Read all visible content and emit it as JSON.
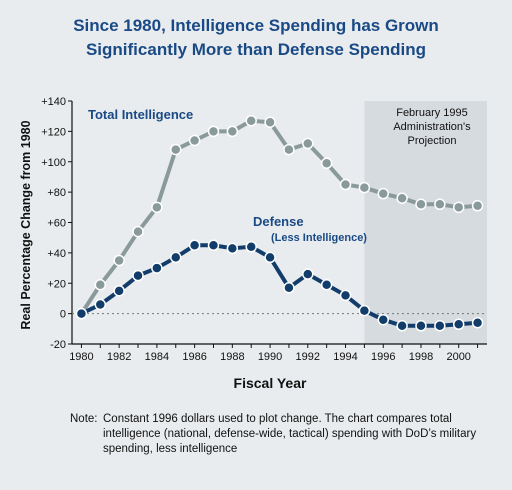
{
  "title_lines": [
    "Since 1980, Intelligence Spending has Grown",
    "Significantly More than Defense Spending"
  ],
  "note": {
    "label": "Note:",
    "text": "Constant 1996 dollars used to plot change. The chart compares total intelligence (national, defense-wide, tactical) spending with DoD’s military spending, less intelligence"
  },
  "colors": {
    "title": "#1a4a86",
    "total_intelligence": "#8a9a9a",
    "defense": "#123d6b",
    "projection_shade": "#d6dbe0",
    "background": "#e9ecee"
  },
  "chart_data": {
    "type": "line",
    "xlabel": "Fiscal Year",
    "ylabel": "Real Percentage Change from 1980",
    "xlim": [
      1979.5,
      2001.5
    ],
    "ylim": [
      -20,
      140
    ],
    "x_ticks": [
      1980,
      1982,
      1984,
      1986,
      1988,
      1990,
      1992,
      1994,
      1996,
      1998,
      2000
    ],
    "y_ticks": [
      -20,
      0,
      20,
      40,
      60,
      80,
      100,
      120,
      140
    ],
    "y_tick_labels": [
      "-20",
      "0",
      "+20",
      "+40",
      "+60",
      "+80",
      "+100",
      "+120",
      "+140"
    ],
    "x": [
      1980,
      1981,
      1982,
      1983,
      1984,
      1985,
      1986,
      1987,
      1988,
      1989,
      1990,
      1991,
      1992,
      1993,
      1994,
      1995,
      1996,
      1997,
      1998,
      1999,
      2000,
      2001
    ],
    "series": [
      {
        "name": "Total Intelligence",
        "values": [
          0,
          19,
          35,
          54,
          70,
          108,
          114,
          120,
          120,
          127,
          126,
          108,
          112,
          99,
          85,
          83,
          79,
          76,
          72,
          72,
          70,
          71
        ]
      },
      {
        "name": "Defense",
        "subname": "(Less Intelligence)",
        "values": [
          0,
          6,
          15,
          25,
          30,
          37,
          45,
          45,
          43,
          44,
          37,
          17,
          26,
          19,
          12,
          2,
          -4,
          -8,
          -8,
          -8,
          -7,
          -6
        ]
      }
    ],
    "zero_line": "dotted",
    "projection": {
      "from_year": 1995,
      "label_lines": [
        "February 1995",
        "Administration's",
        "Projection"
      ]
    },
    "grid": false
  }
}
